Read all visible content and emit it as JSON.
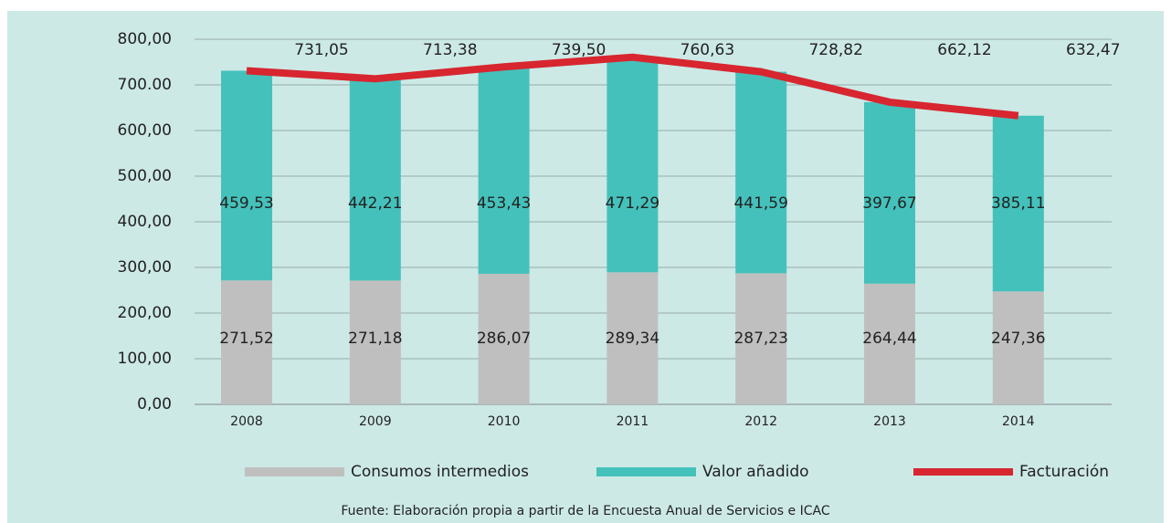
{
  "chart_data": {
    "type": "bar",
    "stacked": true,
    "categories": [
      "2008",
      "2009",
      "2010",
      "2011",
      "2012",
      "2013",
      "2014"
    ],
    "series": [
      {
        "name": "Consumos intermedios",
        "color": "#c0bfbf",
        "type": "bar",
        "values": [
          271.52,
          271.18,
          286.07,
          289.34,
          287.23,
          264.44,
          247.36
        ],
        "value_labels": [
          "271,52",
          "271,18",
          "286,07",
          "289,34",
          "287,23",
          "264,44",
          "247,36"
        ]
      },
      {
        "name": "Valor añadido",
        "color": "#45c1bb",
        "type": "bar",
        "values": [
          459.53,
          442.21,
          453.43,
          471.29,
          441.59,
          397.67,
          385.11
        ],
        "value_labels": [
          "459,53",
          "442,21",
          "453,43",
          "471,29",
          "441,59",
          "397,67",
          "385,11"
        ]
      },
      {
        "name": "Facturación",
        "color": "#d7262f",
        "type": "line",
        "values": [
          731.05,
          713.38,
          739.5,
          760.63,
          728.82,
          662.12,
          632.47
        ],
        "value_labels": [
          "731,05",
          "713,38",
          "739,50",
          "760,63",
          "728,82",
          "662,12",
          "632,47"
        ]
      }
    ],
    "ylim": [
      0,
      800
    ],
    "yticks": [
      {
        "value": 0,
        "label": "0,00"
      },
      {
        "value": 100,
        "label": "100,00"
      },
      {
        "value": 200,
        "label": "200,00"
      },
      {
        "value": 300,
        "label": "300,00"
      },
      {
        "value": 400,
        "label": "400,00"
      },
      {
        "value": 500,
        "label": "500,00"
      },
      {
        "value": 600,
        "label": "600,00"
      },
      {
        "value": 700,
        "label": "700.00"
      },
      {
        "value": 800,
        "label": "800,00"
      }
    ],
    "grid": true,
    "legend": "bottom",
    "source": "Fuente: Elaboración propia a partir de la Encuesta Anual de Servicios e ICAC"
  }
}
